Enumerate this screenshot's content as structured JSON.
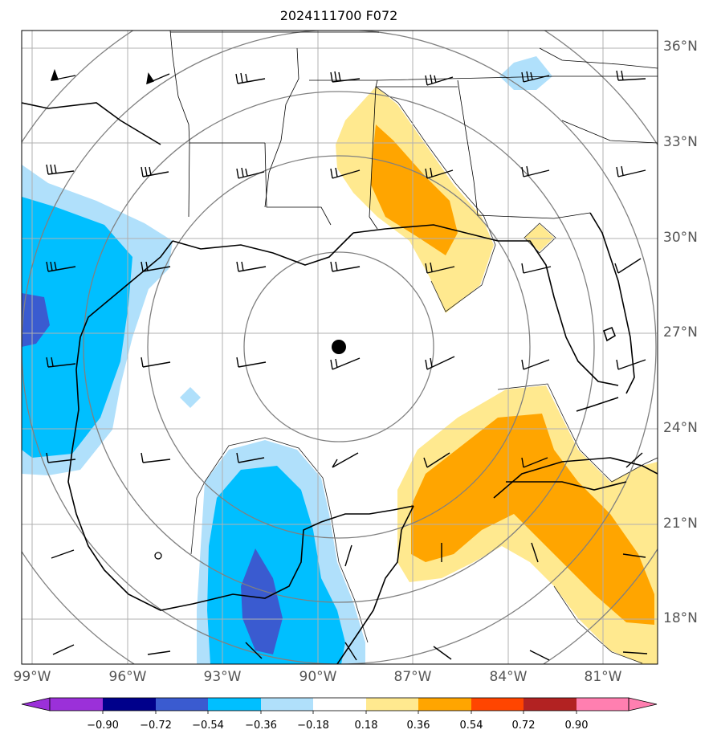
{
  "title": "2024111700 F072",
  "lat_labels": [
    "36°N",
    "33°N",
    "30°N",
    "27°N",
    "24°N",
    "21°N",
    "18°N"
  ],
  "lon_labels": [
    "99°W",
    "96°W",
    "93°W",
    "90°W",
    "87°W",
    "84°W",
    "81°W"
  ],
  "colorbar": {
    "labels": [
      "−0.90",
      "−0.72",
      "−0.54",
      "−0.36",
      "−0.18",
      "0.18",
      "0.36",
      "0.54",
      "0.72",
      "0.90"
    ],
    "colors": [
      "#9b30d9",
      "#00008b",
      "#3a5bd0",
      "#00bfff",
      "#b0e0fb",
      "#ffffff",
      "#ffe98f",
      "#ffa500",
      "#ff4500",
      "#b22222",
      "#ff7fb0"
    ]
  },
  "center_marker": "storm-center-dot"
}
